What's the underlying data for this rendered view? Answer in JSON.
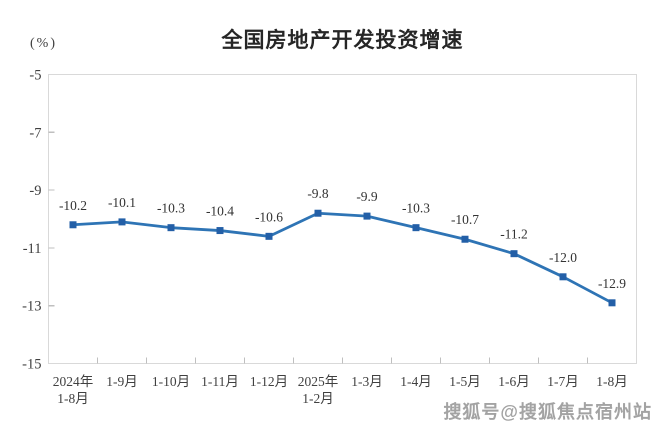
{
  "chart_data": {
    "type": "line",
    "title": "全国房地产开发投资增速",
    "unit_label": "(%)",
    "categories": [
      "2024年\n1-8月",
      "1-9月",
      "1-10月",
      "1-11月",
      "1-12月",
      "2025年\n1-2月",
      "1-3月",
      "1-4月",
      "1-5月",
      "1-6月",
      "1-7月",
      "1-8月"
    ],
    "values": [
      -10.2,
      -10.1,
      -10.3,
      -10.4,
      -10.6,
      -9.8,
      -9.9,
      -10.3,
      -10.7,
      -11.2,
      -12.0,
      -12.9
    ],
    "data_labels": [
      "-10.2",
      "-10.1",
      "-10.3",
      "-10.4",
      "-10.6",
      "-9.8",
      "-9.9",
      "-10.3",
      "-10.7",
      "-11.2",
      "-12.0",
      "-12.9"
    ],
    "y_ticks": [
      -5,
      -7,
      -9,
      -11,
      -13,
      -15
    ],
    "ylim": [
      -15,
      -5
    ],
    "xlabel": "",
    "ylabel": "(%)",
    "grid": false,
    "legend": "none",
    "colors": {
      "line": "#2e74b5",
      "marker": "#235fa7",
      "border": "#d9d9d9",
      "tick": "#bfbfbf",
      "axis_text": "#404040",
      "data_label_text": "#333333"
    }
  },
  "watermark": {
    "text": "搜狐号@搜狐焦点宿州站"
  }
}
